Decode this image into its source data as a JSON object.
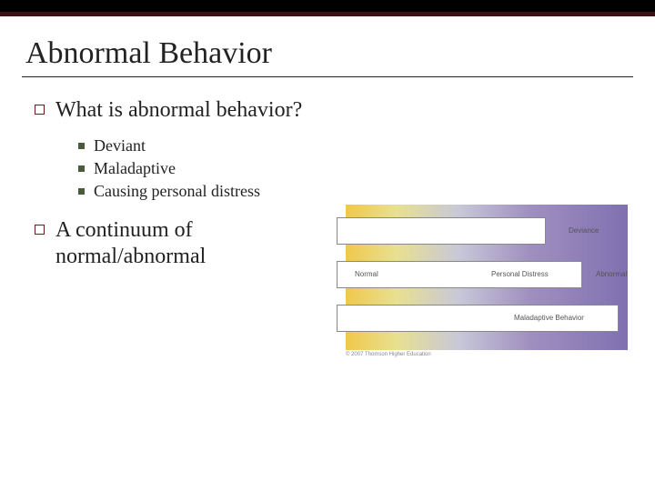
{
  "slide": {
    "title": "Abnormal Behavior",
    "bullets": [
      {
        "text": "What is abnormal behavior?",
        "sub": [
          "Deviant",
          "Maladaptive",
          "Causing personal distress"
        ]
      },
      {
        "text": "A continuum of normal/abnormal",
        "sub": []
      }
    ]
  },
  "diagram": {
    "type": "infographic",
    "gradient_colors": [
      "#f0c84a",
      "#e8e090",
      "#c8c8d8",
      "#a090c0",
      "#8070b0"
    ],
    "bars": [
      {
        "width_ratio": 0.72,
        "label_right": "Deviance"
      },
      {
        "width_ratio": 0.84,
        "label_left": "Normal",
        "label_mid": "Personal Distress",
        "label_right": "Abnormal"
      },
      {
        "width_ratio": 0.97,
        "label_mid": "Maladaptive Behavior"
      }
    ],
    "labels": {
      "deviance": "Deviance",
      "normal": "Normal",
      "distress": "Personal Distress",
      "abnormal": "Abnormal",
      "maladaptive": "Maladaptive Behavior"
    },
    "copyright": "© 2007 Thomson Higher Education",
    "bar_bg": "#ffffff",
    "bar_border": "#888888",
    "label_fontsize": 8,
    "label_color": "#555555"
  },
  "colors": {
    "top_stripe": "#000000",
    "top_stripe_border": "#3a1212",
    "bullet_open_border": "#6a1a1a",
    "bullet_solid": "#4a5a3a",
    "title_color": "#222222",
    "body_color": "#222222",
    "background": "#ffffff"
  },
  "typography": {
    "title_fontsize": 34,
    "level1_fontsize": 24,
    "level2_fontsize": 18,
    "font_family": "Times New Roman"
  }
}
